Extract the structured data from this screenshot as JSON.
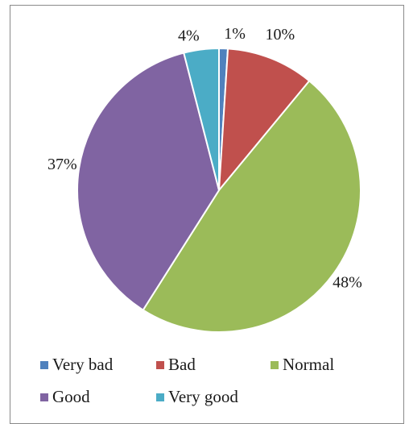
{
  "chart_data": {
    "type": "pie",
    "title": "",
    "categories": [
      "Very bad",
      "Bad",
      "Normal",
      "Good",
      "Very good"
    ],
    "values": [
      1,
      10,
      48,
      37,
      4
    ],
    "labels": [
      "1%",
      "10%",
      "48%",
      "37%",
      "4%"
    ],
    "colors": [
      "#4f81bd",
      "#c0504d",
      "#9bbb59",
      "#8064a2",
      "#4bacc6"
    ],
    "start_angle_deg": 0,
    "direction": "clockwise",
    "legend_position": "bottom"
  }
}
